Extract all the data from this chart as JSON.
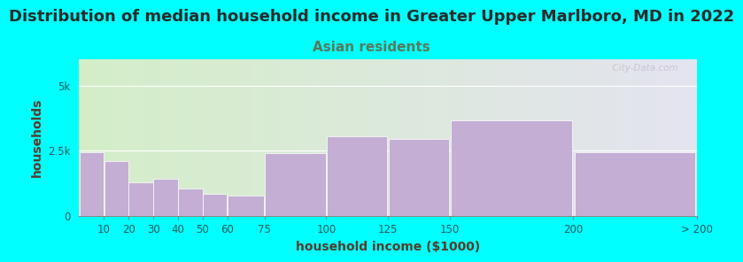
{
  "title": "Distribution of median household income in Greater Upper Marlboro, MD in 2022",
  "subtitle": "Asian residents",
  "xlabel": "household income ($1000)",
  "ylabel": "households",
  "background_color": "#00FFFF",
  "bar_color": "#C4AED4",
  "bar_edge_color": "#ffffff",
  "categories": [
    "10",
    "20",
    "30",
    "40",
    "50",
    "60",
    "75",
    "100",
    "125",
    "150",
    "200",
    "> 200"
  ],
  "values": [
    2450,
    2100,
    1300,
    1450,
    1050,
    850,
    800,
    2400,
    3050,
    2950,
    3650,
    2450
  ],
  "edges": [
    0,
    10,
    20,
    30,
    40,
    50,
    60,
    75,
    100,
    125,
    150,
    200,
    250
  ],
  "ylim": [
    0,
    6000
  ],
  "ytick_labels": [
    "0",
    "2.5k",
    "5k"
  ],
  "ytick_vals": [
    0,
    2500,
    5000
  ],
  "title_fontsize": 13,
  "subtitle_fontsize": 11,
  "axis_label_fontsize": 10,
  "tick_fontsize": 8.5,
  "title_color": "#2a2a2a",
  "subtitle_color": "#5a7a5a",
  "axis_label_color": "#5a3a2a",
  "tick_color": "#2a5a5a",
  "watermark": "  City-Data.com"
}
